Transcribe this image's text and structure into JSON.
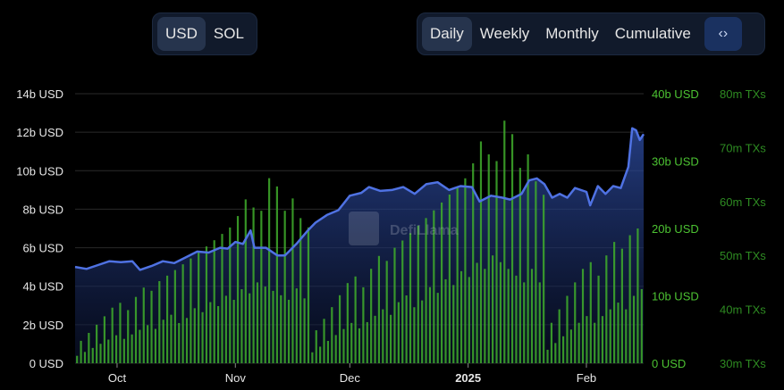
{
  "currency_toggle": {
    "options": [
      "USD",
      "SOL"
    ],
    "selected": "USD"
  },
  "period_tabs": {
    "options": [
      "Daily",
      "Weekly",
      "Monthly",
      "Cumulative"
    ],
    "selected": "Daily",
    "embed_icon": "code-icon",
    "embed_label": "<>"
  },
  "watermark": "DefiLlama",
  "colors": {
    "tvl_line": "#4f72e3",
    "volume_bar": "#3fae2c",
    "tx_axis": "#2e8b22",
    "background": "#000000"
  },
  "chart_data": {
    "type": "area",
    "grid": true,
    "x_ticks": [
      "Oct",
      "Nov",
      "Dec",
      "2025",
      "Feb"
    ],
    "x_tick_dates": [
      "2024-10-01",
      "2024-11-01",
      "2024-12-01",
      "2025-01-01",
      "2025-02-01"
    ],
    "x_range": [
      "2024-09-20",
      "2025-02-16"
    ],
    "axes": {
      "left": {
        "ticks": [
          "0 USD",
          "2b USD",
          "4b USD",
          "6b USD",
          "8b USD",
          "10b USD",
          "12b USD",
          "14b USD"
        ],
        "range": [
          0,
          14000000000
        ]
      },
      "right1": {
        "ticks": [
          "0 USD",
          "10b USD",
          "20b USD",
          "30b USD",
          "40b USD"
        ],
        "range": [
          0,
          40000000000
        ]
      },
      "right2": {
        "ticks": [
          "30m TXs",
          "40m TXs",
          "50m TXs",
          "60m TXs",
          "70m TXs",
          "80m TXs"
        ],
        "range": [
          30000000,
          80000000
        ]
      }
    },
    "series": [
      {
        "axis": "left",
        "kind": "area",
        "unit": "USD",
        "points": [
          [
            "2024-09-20",
            5.0
          ],
          [
            "2024-09-23",
            4.9
          ],
          [
            "2024-09-26",
            5.1
          ],
          [
            "2024-09-29",
            5.3
          ],
          [
            "2024-10-02",
            5.25
          ],
          [
            "2024-10-05",
            5.3
          ],
          [
            "2024-10-07",
            4.85
          ],
          [
            "2024-10-10",
            5.05
          ],
          [
            "2024-10-13",
            5.3
          ],
          [
            "2024-10-16",
            5.2
          ],
          [
            "2024-10-19",
            5.5
          ],
          [
            "2024-10-22",
            5.8
          ],
          [
            "2024-10-25",
            5.75
          ],
          [
            "2024-10-28",
            6.0
          ],
          [
            "2024-10-30",
            5.95
          ],
          [
            "2024-11-01",
            6.3
          ],
          [
            "2024-11-03",
            6.2
          ],
          [
            "2024-11-05",
            6.9
          ],
          [
            "2024-11-06",
            6.0
          ],
          [
            "2024-11-09",
            6.0
          ],
          [
            "2024-11-12",
            5.6
          ],
          [
            "2024-11-14",
            5.6
          ],
          [
            "2024-11-17",
            6.2
          ],
          [
            "2024-11-20",
            6.9
          ],
          [
            "2024-11-22",
            7.3
          ],
          [
            "2024-11-25",
            7.7
          ],
          [
            "2024-11-28",
            7.95
          ],
          [
            "2024-12-01",
            8.7
          ],
          [
            "2024-12-04",
            8.85
          ],
          [
            "2024-12-06",
            9.15
          ],
          [
            "2024-12-09",
            8.95
          ],
          [
            "2024-12-12",
            9.0
          ],
          [
            "2024-12-15",
            9.15
          ],
          [
            "2024-12-18",
            8.8
          ],
          [
            "2024-12-21",
            9.3
          ],
          [
            "2024-12-24",
            9.4
          ],
          [
            "2024-12-27",
            9.0
          ],
          [
            "2024-12-30",
            9.2
          ],
          [
            "2025-01-02",
            9.15
          ],
          [
            "2025-01-04",
            8.4
          ],
          [
            "2025-01-07",
            8.7
          ],
          [
            "2025-01-10",
            8.6
          ],
          [
            "2025-01-12",
            8.5
          ],
          [
            "2025-01-15",
            8.8
          ],
          [
            "2025-01-17",
            9.5
          ],
          [
            "2025-01-19",
            9.6
          ],
          [
            "2025-01-21",
            9.3
          ],
          [
            "2025-01-23",
            8.6
          ],
          [
            "2025-01-25",
            8.8
          ],
          [
            "2025-01-27",
            8.6
          ],
          [
            "2025-01-29",
            9.1
          ],
          [
            "2025-02-01",
            8.9
          ],
          [
            "2025-02-02",
            8.2
          ],
          [
            "2025-02-04",
            9.2
          ],
          [
            "2025-02-06",
            8.8
          ],
          [
            "2025-02-08",
            9.2
          ],
          [
            "2025-02-10",
            9.1
          ],
          [
            "2025-02-12",
            10.2
          ],
          [
            "2025-02-13",
            12.2
          ],
          [
            "2025-02-14",
            12.1
          ],
          [
            "2025-02-15",
            11.6
          ],
          [
            "2025-02-16",
            11.9
          ]
        ]
      },
      {
        "axis": "right1",
        "kind": "bar",
        "unit": "USD",
        "description_unused": "",
        "pattern_values_b": [
          2,
          6,
          3,
          8,
          4,
          10,
          5,
          12,
          6,
          14,
          7,
          15,
          6,
          13,
          7,
          16,
          8,
          18,
          9,
          17,
          8,
          19,
          10,
          20,
          11,
          21,
          9,
          22,
          10,
          23,
          12,
          24,
          11,
          25,
          13,
          26,
          12,
          27,
          14,
          28,
          13,
          30,
          15,
          33,
          14,
          31,
          16,
          30,
          15,
          36,
          14,
          34,
          13,
          29,
          12,
          31,
          14,
          27,
          12,
          25
        ]
      }
    ]
  }
}
